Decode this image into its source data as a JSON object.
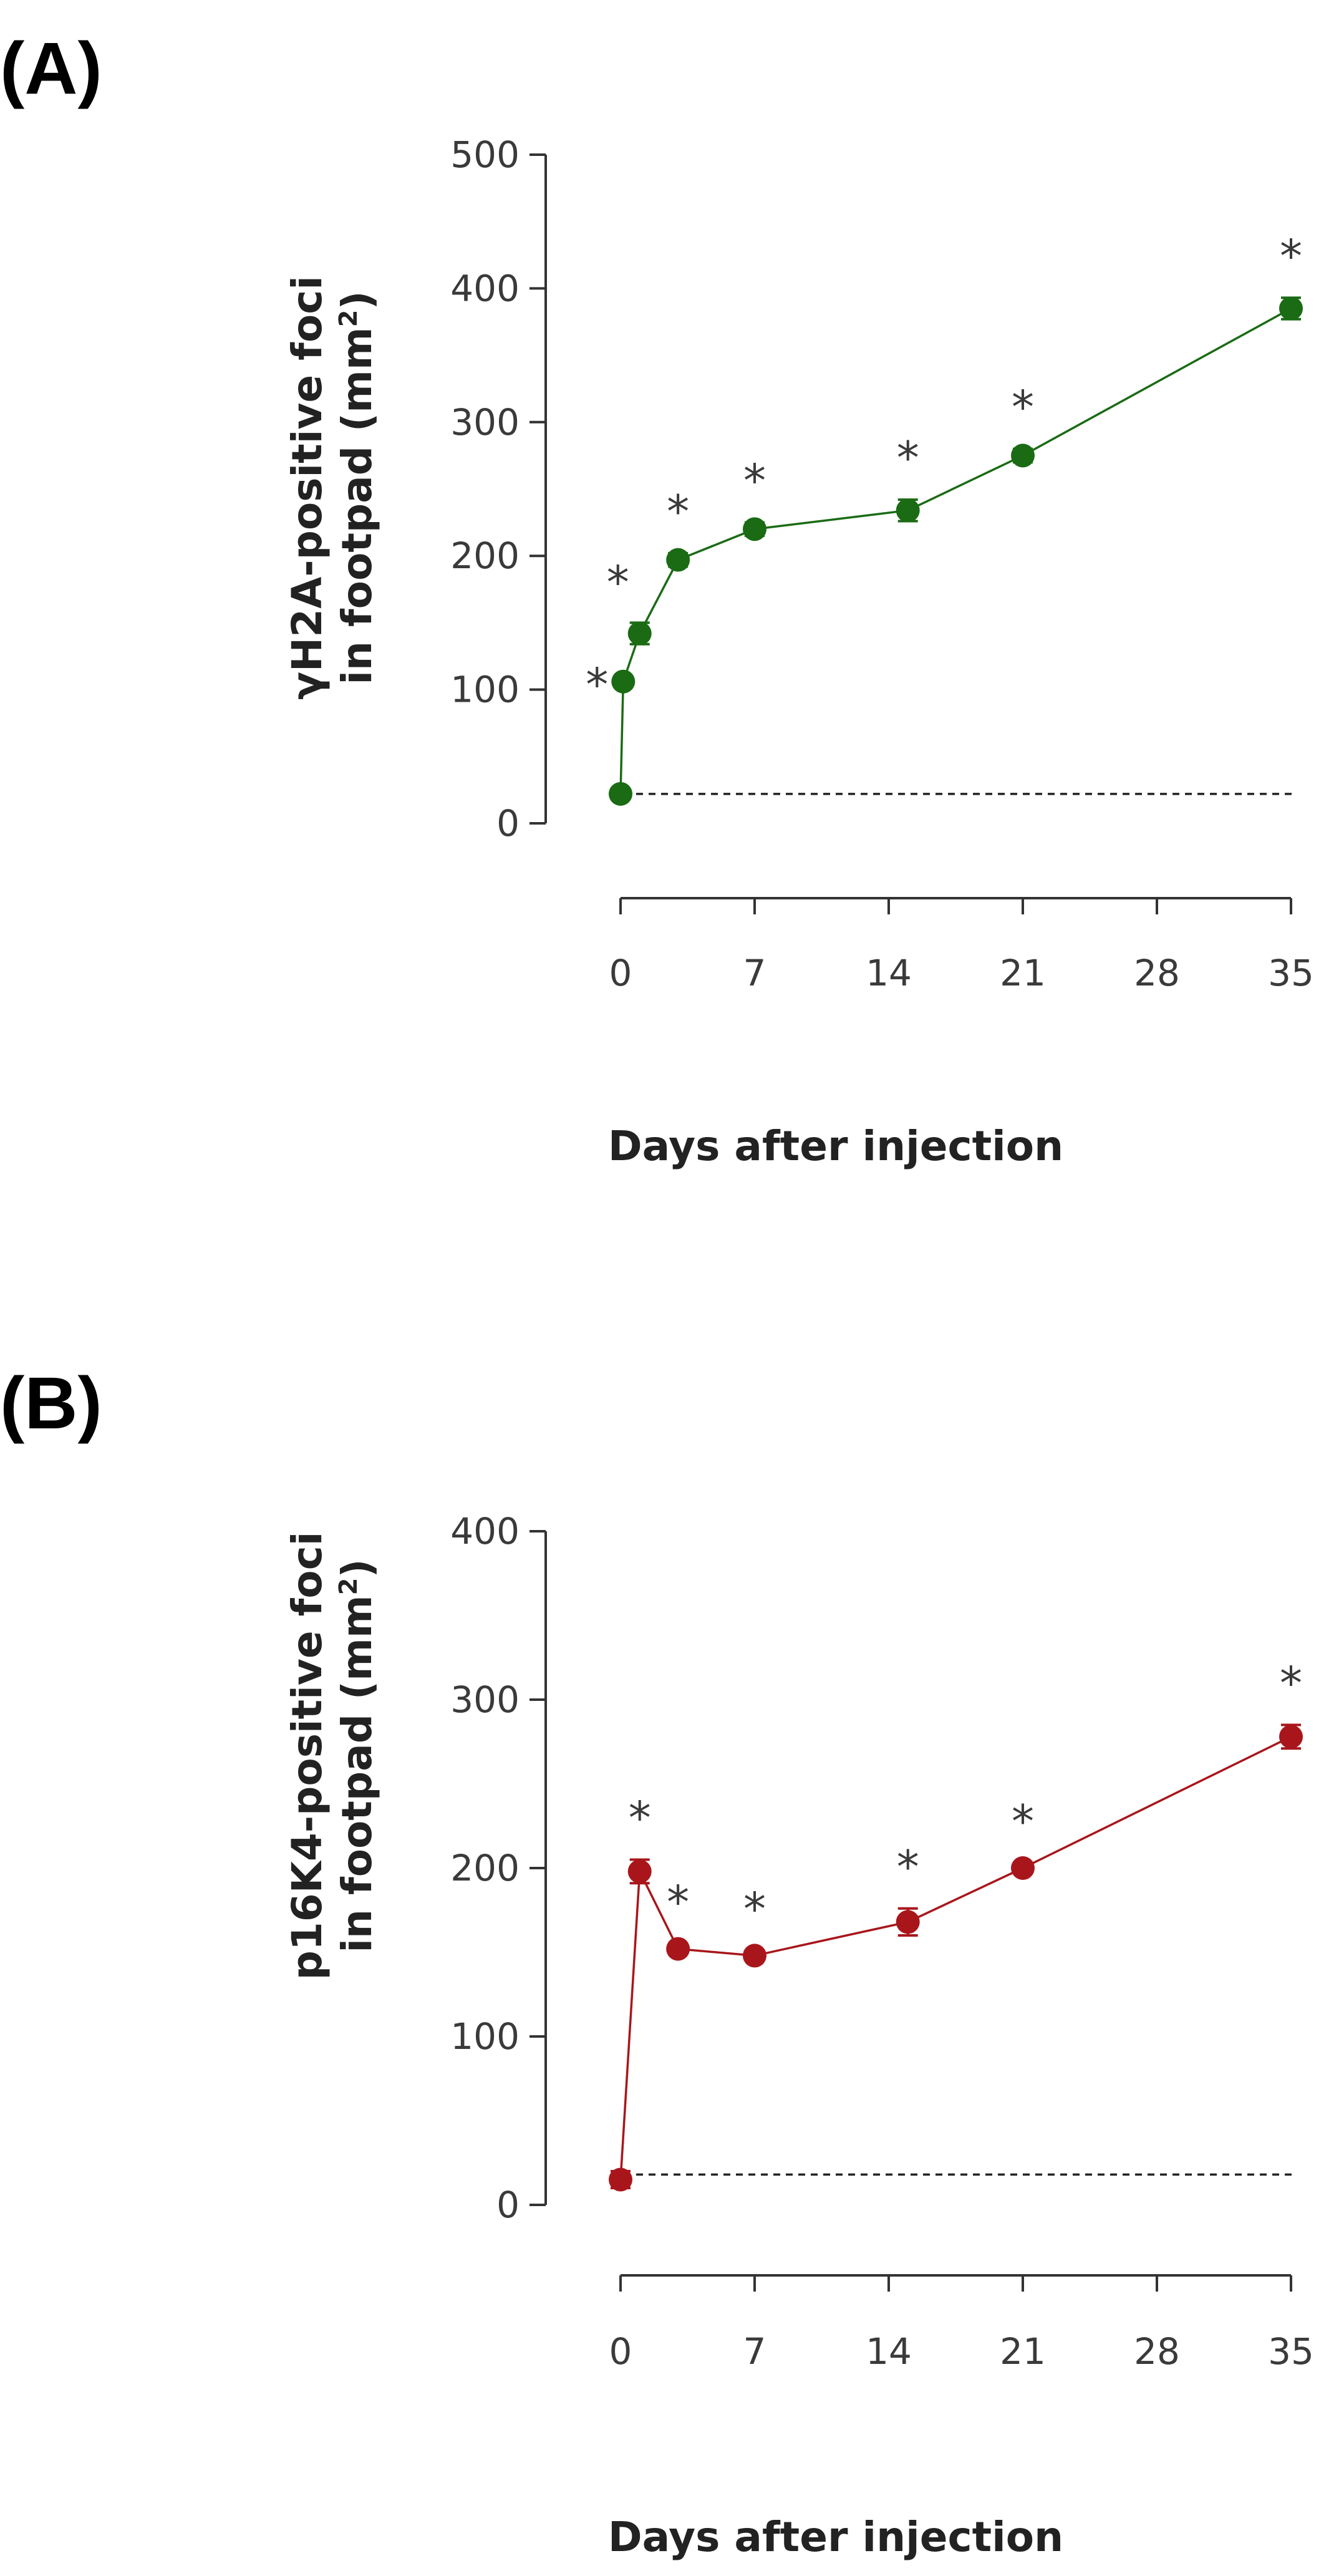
{
  "chart_data": [
    {
      "type": "line",
      "panel_label": "(A)",
      "xlabel": "Days after injection",
      "ylabel_line1": "γH2A-positive foci",
      "ylabel_line2_prefix": "in footpad (mm",
      "ylabel_sup": "2",
      "ylabel_line2_suffix": ")",
      "xticks": [
        "0",
        "7",
        "14",
        "21",
        "28",
        "35"
      ],
      "xtick_values": [
        0,
        7,
        14,
        21,
        28,
        35
      ],
      "yticks": [
        "0",
        "100",
        "200",
        "300",
        "400",
        "500"
      ],
      "ylim": [
        0,
        500
      ],
      "xlim": [
        0,
        35
      ],
      "color": "#1a6b14",
      "baseline": 22,
      "series": [
        {
          "name": "γH2A",
          "x": [
            0,
            0.14,
            1,
            3,
            7,
            15,
            21,
            35
          ],
          "y": [
            22,
            106,
            142,
            197,
            220,
            234,
            275,
            385
          ],
          "err": [
            0,
            3,
            8,
            5,
            5,
            8,
            5,
            8
          ],
          "significant": [
            false,
            true,
            true,
            true,
            true,
            true,
            true,
            true
          ]
        }
      ],
      "significance_marker": "*"
    },
    {
      "type": "line",
      "panel_label": "(B)",
      "xlabel": "Days after injection",
      "ylabel_line1": "p16K4-positive foci",
      "ylabel_line2_prefix": "in footpad (mm",
      "ylabel_sup": "2",
      "ylabel_line2_suffix": ")",
      "xticks": [
        "0",
        "7",
        "14",
        "21",
        "28",
        "35"
      ],
      "xtick_values": [
        0,
        7,
        14,
        21,
        28,
        35
      ],
      "yticks": [
        "0",
        "100",
        "200",
        "300",
        "400"
      ],
      "ylim": [
        0,
        400
      ],
      "xlim": [
        0,
        35
      ],
      "color": "#a8161b",
      "baseline": 18,
      "series": [
        {
          "name": "p16K4",
          "x": [
            0,
            1,
            3,
            7,
            15,
            21,
            35
          ],
          "y": [
            15,
            198,
            152,
            148,
            168,
            200,
            278
          ],
          "err": [
            5,
            7,
            3,
            3,
            8,
            3,
            7
          ],
          "significant": [
            false,
            true,
            true,
            true,
            true,
            true,
            true
          ]
        }
      ],
      "significance_marker": "*"
    }
  ]
}
